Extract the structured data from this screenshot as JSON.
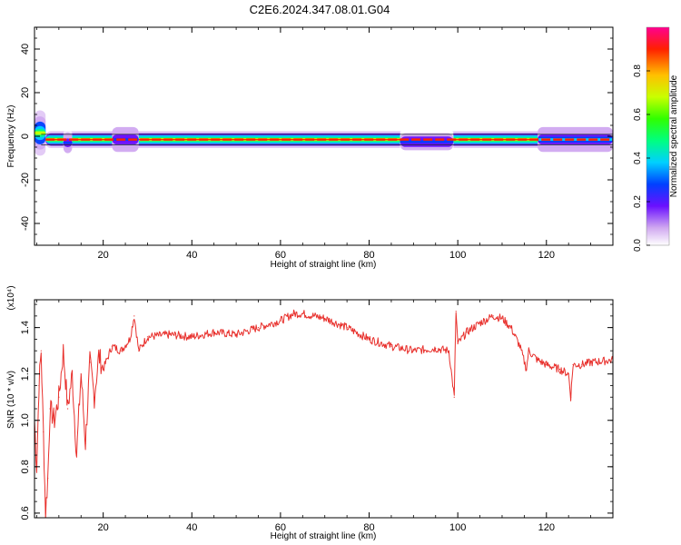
{
  "title": "C2E6.2024.347.08.01.G04",
  "chart_data": [
    {
      "type": "heatmap",
      "xlabel": "Height of straight line (km)",
      "ylabel": "Frequency (Hz)",
      "xlim": [
        4.5,
        135
      ],
      "ylim": [
        -50,
        50
      ],
      "xticks": [
        20,
        40,
        60,
        80,
        100,
        120
      ],
      "yticks": [
        -40,
        -20,
        0,
        20,
        40
      ],
      "colorbar": {
        "label": "Normalized spectral amplitude",
        "range": [
          0,
          1
        ],
        "ticks": [
          "0.0",
          "0.2",
          "0.4",
          "0.6",
          "0.8"
        ]
      },
      "ridge": {
        "center_hz": -1.5,
        "note": "dominant spectral line near -1.5 Hz across all heights",
        "segments": [
          {
            "x": [
              4.5,
              7
            ],
            "center_hz": 1.5,
            "spread_hz": 4,
            "amplitude": 0.7
          },
          {
            "x": [
              7,
              135
            ],
            "center_hz": -1.5,
            "spread_hz": 1.5,
            "amplitude": 0.95
          },
          {
            "x": [
              11,
              13
            ],
            "center_hz": -3,
            "spread_hz": 2.5,
            "amplitude": 0.35
          },
          {
            "x": [
              22,
              28
            ],
            "center_hz": -1.5,
            "spread_hz": 3,
            "amplitude": 0.35
          },
          {
            "x": [
              87,
              99
            ],
            "center_hz": -2.5,
            "spread_hz": 3,
            "amplitude": 0.3
          },
          {
            "x": [
              118,
              135
            ],
            "center_hz": -1.5,
            "spread_hz": 3,
            "amplitude": 0.4
          }
        ]
      }
    },
    {
      "type": "line",
      "xlabel": "Height of straight line (km)",
      "ylabel": "SNR (10 * v/v)",
      "multiplier": "(x10⁴)",
      "xlim": [
        4.5,
        135
      ],
      "ylim": [
        0.58,
        1.52
      ],
      "xticks": [
        20,
        40,
        60,
        80,
        100,
        120
      ],
      "yticks": [
        0.6,
        0.8,
        1.0,
        1.2,
        1.4
      ],
      "series": [
        {
          "color": "#e8302c",
          "x": [
            4.5,
            5,
            5.5,
            6,
            6.5,
            7,
            7.5,
            8,
            9,
            10,
            11,
            12,
            13,
            14,
            15,
            16,
            17,
            18,
            19,
            20,
            22,
            24,
            26,
            27,
            28,
            30,
            35,
            40,
            45,
            50,
            55,
            60,
            63,
            65,
            70,
            75,
            80,
            85,
            90,
            95,
            98,
            99.2,
            99.6,
            100,
            102,
            105,
            108,
            110,
            112,
            114,
            115.5,
            116,
            118,
            120,
            123,
            125,
            125.5,
            126,
            128,
            130,
            135
          ],
          "y": [
            1.0,
            0.8,
            1.15,
            1.3,
            0.95,
            0.6,
            0.75,
            1.05,
            1.0,
            1.1,
            1.3,
            1.05,
            1.2,
            0.85,
            1.2,
            0.9,
            1.25,
            1.1,
            1.28,
            1.22,
            1.32,
            1.3,
            1.35,
            1.45,
            1.3,
            1.36,
            1.37,
            1.36,
            1.38,
            1.37,
            1.4,
            1.43,
            1.46,
            1.46,
            1.44,
            1.4,
            1.35,
            1.32,
            1.3,
            1.31,
            1.3,
            1.1,
            1.47,
            1.33,
            1.38,
            1.42,
            1.45,
            1.44,
            1.4,
            1.32,
            1.22,
            1.3,
            1.26,
            1.24,
            1.22,
            1.2,
            1.1,
            1.24,
            1.24,
            1.25,
            1.26
          ]
        }
      ]
    }
  ]
}
